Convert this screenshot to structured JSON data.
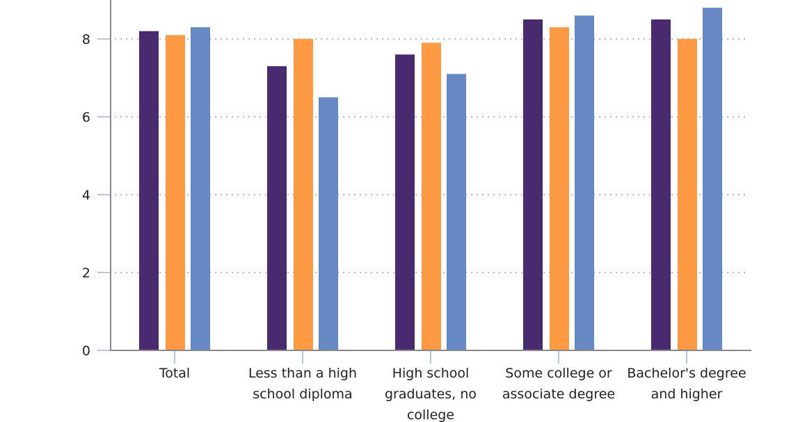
{
  "chart_data": {
    "type": "bar",
    "title": "",
    "xlabel": "",
    "ylabel": "",
    "ylim": [
      0,
      8
    ],
    "yticks": [
      0,
      2,
      4,
      6,
      8
    ],
    "grid": true,
    "legend": null,
    "categories": [
      [
        "Total"
      ],
      [
        "Less than a high",
        "school diploma"
      ],
      [
        "High school",
        "graduates, no",
        "college"
      ],
      [
        "Some college or",
        "associate degree"
      ],
      [
        "Bachelor's degree",
        "and higher"
      ]
    ],
    "series": [
      {
        "name": "series-1",
        "color": "#4a2a6e",
        "values": [
          8.2,
          7.3,
          7.6,
          8.5,
          8.5
        ]
      },
      {
        "name": "series-2",
        "color": "#ff9944",
        "values": [
          8.1,
          8.0,
          7.9,
          8.3,
          8.0
        ]
      },
      {
        "name": "series-3",
        "color": "#6689c4",
        "values": [
          8.3,
          6.5,
          7.1,
          8.6,
          8.8
        ]
      }
    ]
  }
}
